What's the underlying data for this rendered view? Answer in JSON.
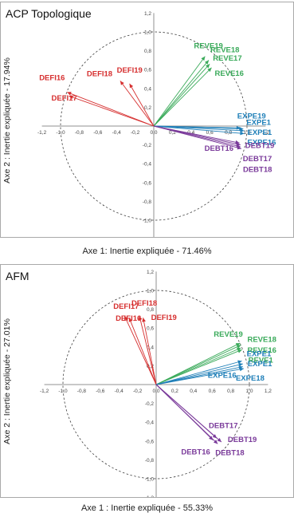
{
  "colors": {
    "red": "#d62f2f",
    "green": "#3aaa5a",
    "blue": "#1f7fb8",
    "purple": "#7a3a9a",
    "axis": "#909090",
    "circle": "#404040"
  },
  "chart_data": [
    {
      "type": "scatter",
      "title": "ACP Topologique",
      "xlabel": "Axe 1: Inertie expliquée - 71.46%",
      "ylabel": "Axe 2 : Inertie expliquée - 17.94%",
      "xlim": [
        -1.2,
        1.2
      ],
      "ylim": [
        -1.2,
        1.2
      ],
      "xticks": [
        "-1,2",
        "-1,0",
        "-0,8",
        "-0,6",
        "-0,4",
        "-0,2",
        "0,0",
        "0,2",
        "0,4",
        "0,6",
        "0,8",
        "1,0",
        "1,2"
      ],
      "yticks": [
        "1,2",
        "1,0",
        "0,8",
        "0,6",
        "0,4",
        "0,2",
        "0,0",
        "-0,2",
        "-0,4",
        "-0,6",
        "-0,8",
        "-1,0",
        "-1,2"
      ],
      "series": [
        {
          "name": "DEFI",
          "color": "red",
          "points": [
            {
              "label": "DEFI16",
              "x": -0.93,
              "y": 0.36
            },
            {
              "label": "DEFI17",
              "x": -0.91,
              "y": 0.32
            },
            {
              "label": "DEFI18",
              "x": -0.36,
              "y": 0.48
            },
            {
              "label": "DEFI19",
              "x": -0.26,
              "y": 0.45
            }
          ]
        },
        {
          "name": "REVE",
          "color": "green",
          "points": [
            {
              "label": "REVE19",
              "x": 0.55,
              "y": 0.74
            },
            {
              "label": "REVE18",
              "x": 0.59,
              "y": 0.7
            },
            {
              "label": "REVE17",
              "x": 0.6,
              "y": 0.66
            },
            {
              "label": "REVE16",
              "x": 0.62,
              "y": 0.62
            }
          ]
        },
        {
          "name": "EXPE",
          "color": "blue",
          "points": [
            {
              "label": "EXPE19",
              "x": 0.93,
              "y": -0.02
            },
            {
              "label": "EXPE1",
              "x": 0.96,
              "y": -0.03
            },
            {
              "label": "EXPE1",
              "x": 0.97,
              "y": -0.05
            },
            {
              "label": "EXPE16",
              "x": 0.97,
              "y": -0.08
            }
          ]
        },
        {
          "name": "DEBT",
          "color": "purple",
          "points": [
            {
              "label": "DEBT16",
              "x": 0.92,
              "y": -0.18
            },
            {
              "label": "DEBT19",
              "x": 0.93,
              "y": -0.2
            },
            {
              "label": "DEBT17",
              "x": 0.93,
              "y": -0.22
            },
            {
              "label": "DEBT18",
              "x": 0.94,
              "y": -0.24
            }
          ]
        }
      ]
    },
    {
      "type": "scatter",
      "title": "AFM",
      "xlabel": "Axe 1 : Inertie expliquée - 55.33%",
      "ylabel": "Axe 2 : Inertie expliquée - 27.01%",
      "xlim": [
        -1.2,
        1.2
      ],
      "ylim": [
        -1.2,
        1.2
      ],
      "xticks": [
        "-1,2",
        "-1,0",
        "-0,8",
        "-0,6",
        "-0,4",
        "-0,2",
        "0,0",
        "0,2",
        "0,4",
        "0,6",
        "0,8",
        "1,0",
        "1,2"
      ],
      "yticks": [
        "1,2",
        "1,0",
        "0,8",
        "0,6",
        "0,4",
        "0,2",
        "0,0",
        "-0,2",
        "-0,4",
        "-0,6",
        "-0,8",
        "-1,0",
        "-1,2"
      ],
      "series": [
        {
          "name": "DEFI",
          "color": "red",
          "points": [
            {
              "label": "DEFI17",
              "x": -0.34,
              "y": 0.73
            },
            {
              "label": "DEFI16",
              "x": -0.29,
              "y": 0.71
            },
            {
              "label": "DEFI18",
              "x": -0.18,
              "y": 0.73
            },
            {
              "label": "DEFI19",
              "x": -0.14,
              "y": 0.71
            }
          ]
        },
        {
          "name": "REVE",
          "color": "green",
          "points": [
            {
              "label": "REVE19",
              "x": 0.9,
              "y": 0.44
            },
            {
              "label": "REVE18",
              "x": 0.91,
              "y": 0.42
            },
            {
              "label": "REVE16",
              "x": 0.91,
              "y": 0.39
            },
            {
              "label": "REVE1",
              "x": 0.92,
              "y": 0.37
            }
          ]
        },
        {
          "name": "EXPE",
          "color": "blue",
          "points": [
            {
              "label": "EXPE1",
              "x": 0.92,
              "y": 0.25
            },
            {
              "label": "EXPE1",
              "x": 0.93,
              "y": 0.22
            },
            {
              "label": "EXPE16",
              "x": 0.93,
              "y": 0.19
            },
            {
              "label": "EXPE18",
              "x": 0.94,
              "y": 0.17
            }
          ]
        },
        {
          "name": "DEBT",
          "color": "purple",
          "points": [
            {
              "label": "DEBT17",
              "x": 0.65,
              "y": -0.57
            },
            {
              "label": "DEBT16",
              "x": 0.61,
              "y": -0.59
            },
            {
              "label": "DEBT19",
              "x": 0.7,
              "y": -0.61
            },
            {
              "label": "DEBT18",
              "x": 0.66,
              "y": -0.63
            }
          ]
        }
      ]
    }
  ]
}
